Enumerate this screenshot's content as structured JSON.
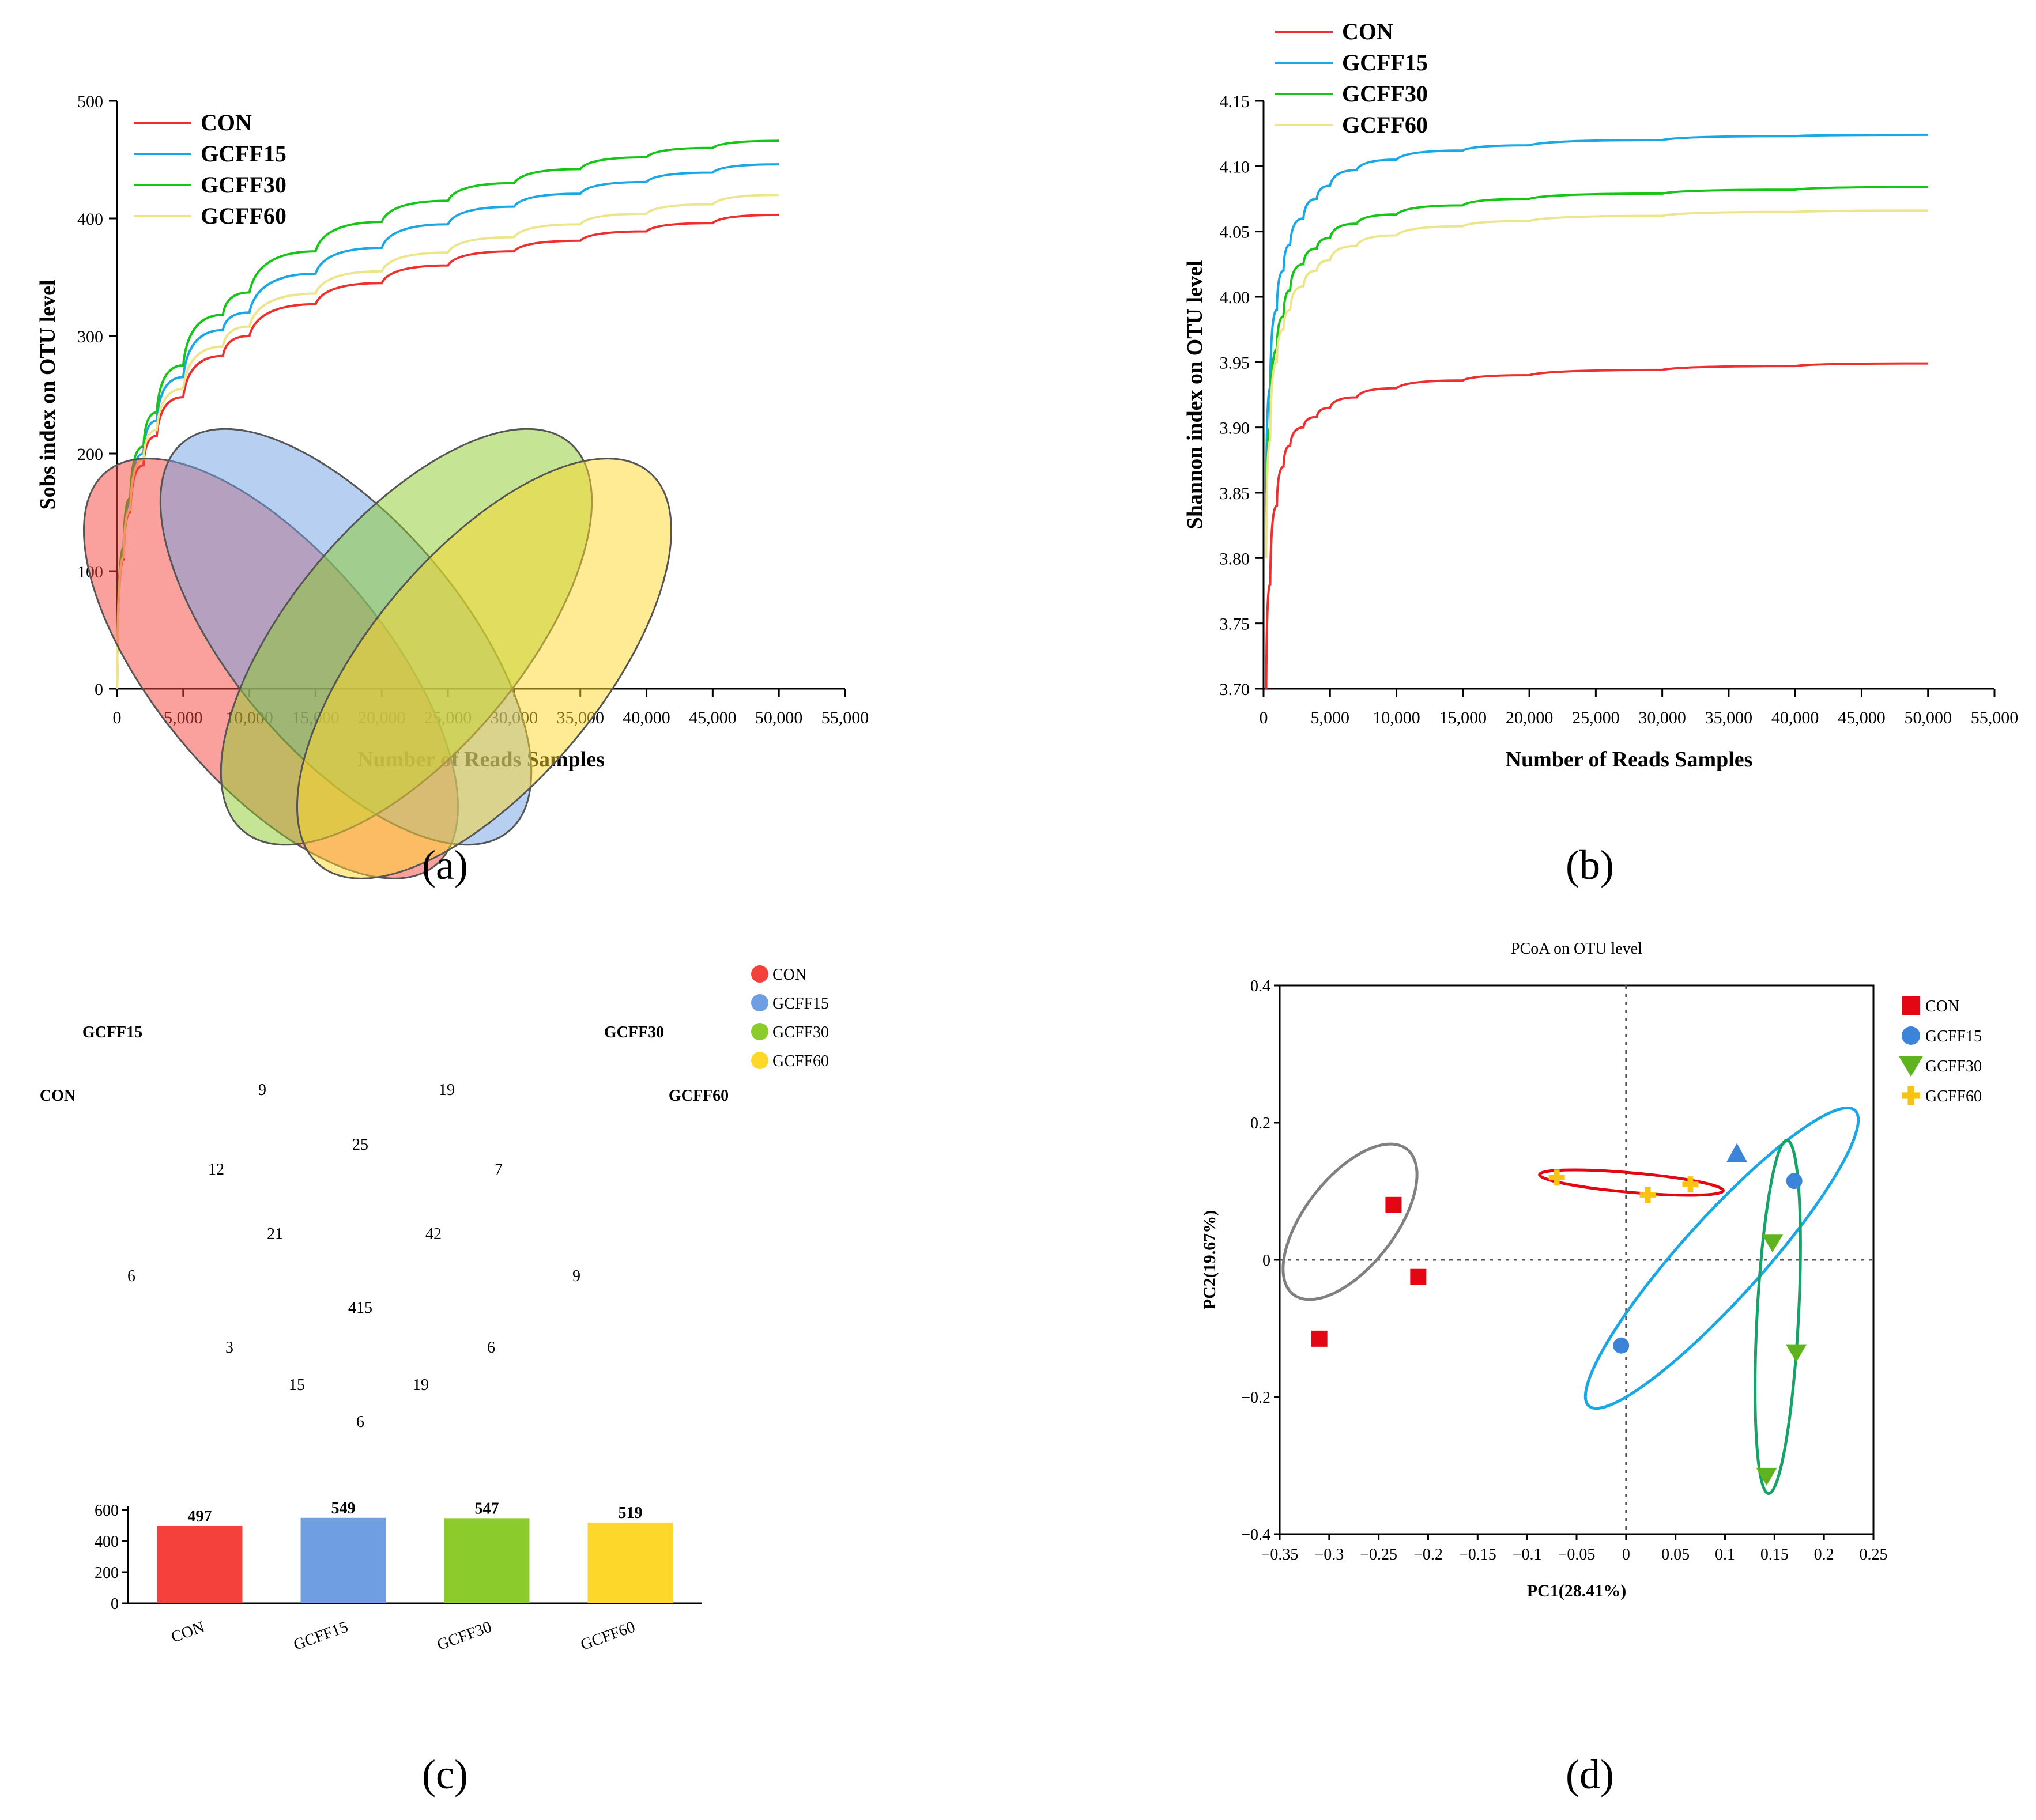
{
  "panel_labels": {
    "a": "(a)",
    "b": "(b)",
    "c": "(c)",
    "d": "(d)"
  },
  "colors": {
    "CON": "#ee2f2f",
    "GCFF15": "#1aa7e6",
    "GCFF30": "#16c516",
    "GCFF60": "#ece58a",
    "venn_CON": "#f5413c",
    "venn_GCFF15": "#6f9fe2",
    "venn_GCFF30": "#8ccb2c",
    "venn_GCFF60": "#fdd72a",
    "pcoa_CON": "#e30613",
    "pcoa_GCFF15": "#3c84d9",
    "pcoa_GCFF30": "#5fb31e",
    "pcoa_GCFF60": "#f8c315"
  },
  "chart_data": [
    {
      "id": "a",
      "type": "line",
      "title": "",
      "xlabel": "Number of Reads Samples",
      "ylabel": "Sobs index on OTU level",
      "xlim": [
        0,
        55000
      ],
      "ylim": [
        0,
        500
      ],
      "xticks": [
        0,
        5000,
        10000,
        15000,
        20000,
        25000,
        30000,
        35000,
        40000,
        45000,
        50000,
        55000
      ],
      "xtick_labels": [
        "0",
        "5,000",
        "10,000",
        "15,000",
        "20,000",
        "25,000",
        "30,000",
        "35,000",
        "40,000",
        "45,000",
        "50,000",
        "55,000"
      ],
      "yticks": [
        0,
        100,
        200,
        300,
        400,
        500
      ],
      "ytick_labels": [
        "0",
        "100",
        "200",
        "300",
        "400",
        "500"
      ],
      "legend_position": "top-left",
      "grid": false,
      "x": [
        0,
        500,
        1000,
        2000,
        3000,
        5000,
        8000,
        10000,
        15000,
        20000,
        25000,
        30000,
        35000,
        40000,
        45000,
        50000
      ],
      "series": [
        {
          "name": "CON",
          "values": [
            0,
            110,
            150,
            190,
            215,
            248,
            283,
            300,
            327,
            345,
            360,
            372,
            381,
            389,
            396,
            403
          ]
        },
        {
          "name": "GCFF15",
          "values": [
            0,
            115,
            158,
            200,
            228,
            265,
            305,
            320,
            353,
            375,
            395,
            410,
            421,
            431,
            439,
            446
          ]
        },
        {
          "name": "GCFF30",
          "values": [
            0,
            120,
            162,
            206,
            235,
            275,
            318,
            337,
            372,
            397,
            415,
            430,
            442,
            452,
            460,
            466
          ]
        },
        {
          "name": "GCFF60",
          "values": [
            0,
            112,
            152,
            195,
            220,
            255,
            291,
            308,
            336,
            355,
            371,
            384,
            395,
            404,
            412,
            420
          ]
        }
      ]
    },
    {
      "id": "b",
      "type": "line",
      "title": "",
      "xlabel": "Number of Reads Samples",
      "ylabel": "Shannon index on OTU level",
      "xlim": [
        0,
        55000
      ],
      "ylim": [
        3.7,
        4.15
      ],
      "xticks": [
        0,
        5000,
        10000,
        15000,
        20000,
        25000,
        30000,
        35000,
        40000,
        45000,
        50000,
        55000
      ],
      "xtick_labels": [
        "0",
        "5,000",
        "10,000",
        "15,000",
        "20,000",
        "25,000",
        "30,000",
        "35,000",
        "40,000",
        "45,000",
        "50,000",
        "55,000"
      ],
      "yticks": [
        3.7,
        3.75,
        3.8,
        3.85,
        3.9,
        3.95,
        4.0,
        4.05,
        4.1,
        4.15
      ],
      "ytick_labels": [
        "3.70",
        "3.75",
        "3.80",
        "3.85",
        "3.90",
        "3.95",
        "4.00",
        "4.05",
        "4.10",
        "4.15"
      ],
      "legend_position": "top-left",
      "grid": false,
      "x": [
        200,
        500,
        1000,
        1500,
        2000,
        3000,
        4000,
        5000,
        7000,
        10000,
        15000,
        20000,
        30000,
        40000,
        50000
      ],
      "series": [
        {
          "name": "CON",
          "values": [
            3.7,
            3.78,
            3.84,
            3.87,
            3.886,
            3.9,
            3.908,
            3.915,
            3.923,
            3.93,
            3.936,
            3.94,
            3.944,
            3.947,
            3.949
          ]
        },
        {
          "name": "GCFF15",
          "values": [
            3.85,
            3.93,
            3.99,
            4.02,
            4.04,
            4.06,
            4.075,
            4.085,
            4.097,
            4.105,
            4.112,
            4.116,
            4.12,
            4.123,
            4.124
          ]
        },
        {
          "name": "GCFF30",
          "values": [
            3.82,
            3.9,
            3.96,
            3.985,
            4.005,
            4.025,
            4.037,
            4.045,
            4.056,
            4.063,
            4.07,
            4.075,
            4.079,
            4.082,
            4.084
          ]
        },
        {
          "name": "GCFF60",
          "values": [
            3.8,
            3.89,
            3.95,
            3.975,
            3.99,
            4.008,
            4.02,
            4.028,
            4.039,
            4.047,
            4.054,
            4.058,
            4.062,
            4.065,
            4.066
          ]
        }
      ]
    },
    {
      "id": "c",
      "type": "venn",
      "title": "",
      "set_labels": [
        "GCFF15",
        "GCFF30",
        "CON",
        "GCFF60"
      ],
      "legend": [
        "CON",
        "GCFF15",
        "GCFF30",
        "GCFF60"
      ],
      "legend_position": "top-right",
      "regions": [
        {
          "sets": [
            "GCFF15"
          ],
          "value": 9
        },
        {
          "sets": [
            "GCFF30"
          ],
          "value": 19
        },
        {
          "sets": [
            "GCFF15",
            "GCFF30"
          ],
          "value": 25
        },
        {
          "sets": [
            "CON",
            "GCFF15"
          ],
          "value": 12
        },
        {
          "sets": [
            "GCFF30",
            "GCFF60"
          ],
          "value": 7
        },
        {
          "sets": [
            "CON",
            "GCFF15",
            "GCFF30"
          ],
          "value": 21
        },
        {
          "sets": [
            "GCFF15",
            "GCFF30",
            "GCFF60"
          ],
          "value": 42
        },
        {
          "sets": [
            "CON"
          ],
          "value": 6
        },
        {
          "sets": [
            "GCFF60"
          ],
          "value": 9
        },
        {
          "sets": [
            "CON",
            "GCFF15",
            "GCFF30",
            "GCFF60"
          ],
          "value": 415
        },
        {
          "sets": [
            "CON",
            "GCFF30"
          ],
          "value": 3
        },
        {
          "sets": [
            "GCFF15",
            "GCFF60"
          ],
          "value": 6
        },
        {
          "sets": [
            "CON",
            "GCFF30",
            "GCFF60"
          ],
          "value": 15
        },
        {
          "sets": [
            "CON",
            "GCFF15",
            "GCFF60"
          ],
          "value": 19
        },
        {
          "sets": [
            "CON",
            "GCFF60"
          ],
          "value": 6
        }
      ],
      "bar": {
        "type": "bar",
        "categories": [
          "CON",
          "GCFF15",
          "GCFF30",
          "GCFF60"
        ],
        "values": [
          497,
          549,
          547,
          519
        ],
        "ylim": [
          0,
          600
        ],
        "yticks": [
          0,
          200,
          400,
          600
        ],
        "ytick_labels": [
          "0",
          "200",
          "400",
          "600"
        ]
      }
    },
    {
      "id": "d",
      "type": "scatter",
      "title": "PCoA on OTU level",
      "xlabel": "PC1(28.41%)",
      "ylabel": "PC2(19.67%)",
      "xlim": [
        -0.35,
        0.25
      ],
      "ylim": [
        -0.4,
        0.4
      ],
      "xticks": [
        -0.35,
        -0.3,
        -0.25,
        -0.2,
        -0.15,
        -0.1,
        -0.05,
        0,
        0.05,
        0.1,
        0.15,
        0.2,
        0.25
      ],
      "xtick_labels": [
        "−0.35",
        "−0.3",
        "−0.25",
        "−0.2",
        "−0.15",
        "−0.1",
        "−0.05",
        "0",
        "0.05",
        "0.1",
        "0.15",
        "0.2",
        "0.25"
      ],
      "yticks": [
        -0.4,
        -0.2,
        0,
        0.2,
        0.4
      ],
      "ytick_labels": [
        "−0.4",
        "−0.2",
        "0",
        "0.2",
        "0.4"
      ],
      "legend_position": "right",
      "grid": false,
      "series": [
        {
          "name": "CON",
          "marker": "square",
          "points": [
            [
              -0.235,
              0.08
            ],
            [
              -0.21,
              -0.025
            ],
            [
              -0.31,
              -0.115
            ]
          ]
        },
        {
          "name": "GCFF15",
          "marker": "circle",
          "points": [
            [
              0.17,
              0.115
            ],
            [
              -0.005,
              -0.125
            ],
            [
              0.112,
              0.155
            ]
          ]
        },
        {
          "name": "GCFF30",
          "marker": "triangle-down",
          "points": [
            [
              0.148,
              0.025
            ],
            [
              0.172,
              -0.135
            ],
            [
              0.142,
              -0.315
            ]
          ]
        },
        {
          "name": "GCFF60",
          "marker": "plus",
          "points": [
            [
              -0.07,
              0.12
            ],
            [
              0.022,
              0.095
            ],
            [
              0.065,
              0.11
            ]
          ]
        }
      ],
      "ellipses": [
        {
          "group": "CON",
          "color": "#808080",
          "cx": -0.258,
          "cy": -0.02,
          "points": [
            [
              -0.31,
              -0.14
            ],
            [
              -0.195,
              0.095
            ]
          ]
        },
        {
          "group": "GCFF15",
          "color": "#1aa7e6",
          "points": [
            [
              -0.015,
              -0.13
            ],
            [
              0.2,
              0.225
            ]
          ]
        },
        {
          "group": "GCFF30",
          "color": "#16a36a",
          "points": [
            [
              0.148,
              -0.34
            ],
            [
              0.16,
              0.07
            ]
          ]
        },
        {
          "group": "GCFF60",
          "color": "#e30613",
          "points": [
            [
              -0.075,
              0.12
            ],
            [
              0.09,
              0.1
            ]
          ]
        }
      ]
    }
  ]
}
